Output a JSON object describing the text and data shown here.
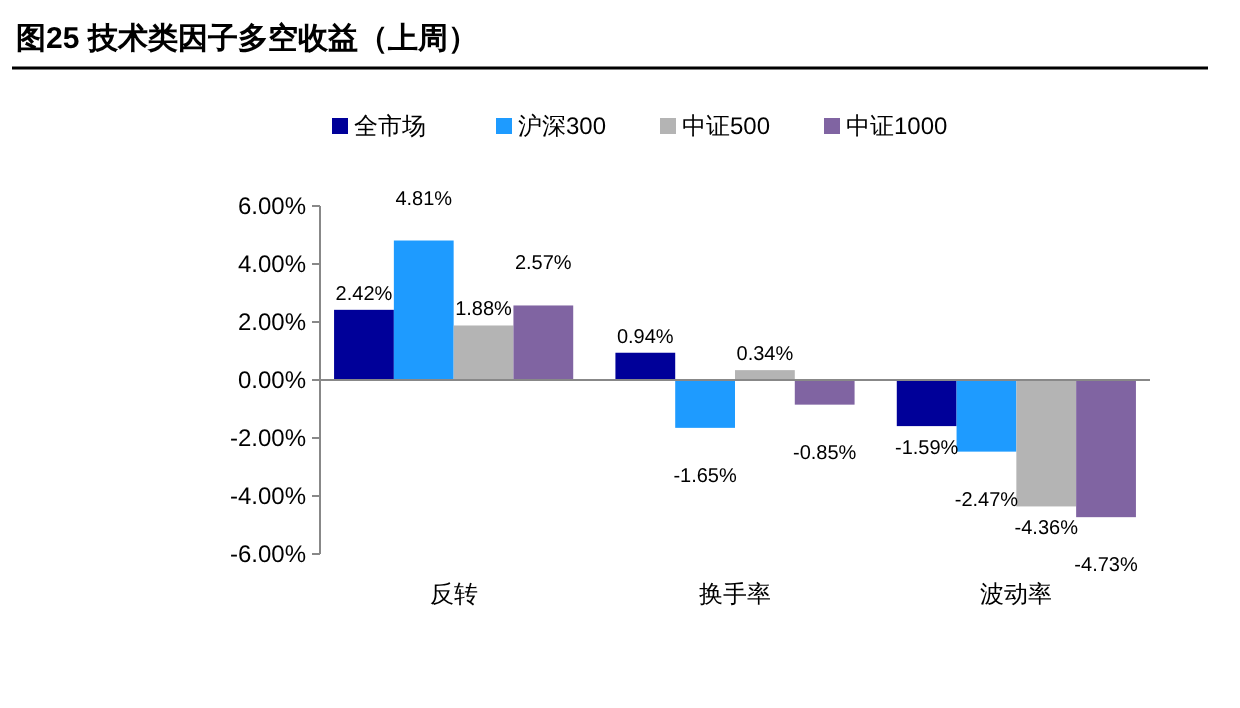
{
  "chart_data": {
    "type": "bar",
    "title": "图25 技术类因子多空收益（上周）",
    "categories": [
      "反转",
      "换手率",
      "波动率"
    ],
    "series": [
      {
        "name": "全市场",
        "color": "#000099",
        "values": [
          2.42,
          0.94,
          -1.59
        ],
        "value_labels": [
          "2.42%",
          "0.94%",
          "-1.59%"
        ]
      },
      {
        "name": "沪深300",
        "color": "#1e9bff",
        "values": [
          4.81,
          -1.65,
          -2.47
        ],
        "value_labels": [
          "4.81%",
          "-1.65%",
          "-2.47%"
        ]
      },
      {
        "name": "中证500",
        "color": "#b4b4b4",
        "values": [
          1.88,
          0.34,
          -4.36
        ],
        "value_labels": [
          "1.88%",
          "0.34%",
          "-4.36%"
        ]
      },
      {
        "name": "中证1000",
        "color": "#8064a2",
        "values": [
          2.57,
          -0.85,
          -4.73
        ],
        "value_labels": [
          "2.57%",
          "-0.85%",
          "-4.73%"
        ]
      }
    ],
    "ylim": [
      -6,
      6
    ],
    "yticks": [
      {
        "value": -6,
        "label": "-6.00%"
      },
      {
        "value": -4,
        "label": "-4.00%"
      },
      {
        "value": -2,
        "label": "-2.00%"
      },
      {
        "value": 0,
        "label": "0.00%"
      },
      {
        "value": 2,
        "label": "2.00%"
      },
      {
        "value": 4,
        "label": "4.00%"
      },
      {
        "value": 6,
        "label": "6.00%"
      }
    ],
    "legend": "top"
  }
}
